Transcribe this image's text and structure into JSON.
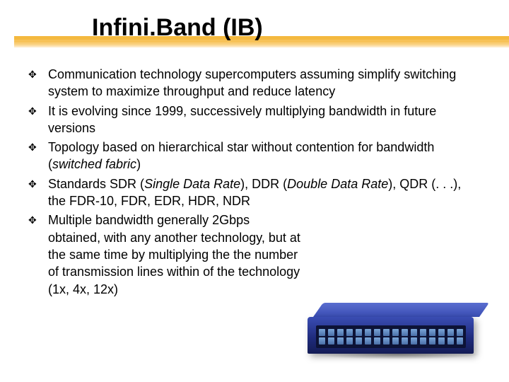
{
  "title": "Infini.Band (IB)",
  "title_fontsize": 34,
  "body_fontsize": 18,
  "colors": {
    "text": "#000000",
    "background": "#ffffff",
    "underline_shades": [
      "#f4b93f",
      "#f7c257",
      "#f9cd76",
      "#fbdb9c",
      "#fde8c1"
    ],
    "device_body": "#1e2a7a",
    "device_highlight": "#3a4db3",
    "device_port": "#7aa6d8"
  },
  "bullet_glyph": "✥",
  "bullets": [
    {
      "plain": "Communication technology supercomputers assuming simplify switching system to maximize throughput and reduce latency"
    },
    {
      "plain": "It is evolving since 1999, successively multiplying bandwidth in future versions"
    },
    {
      "pre": "Topology based on hierarchical star without contention for bandwidth (",
      "it1": "switched fabric",
      "post1": ")"
    },
    {
      "pre": "Standards SDR (",
      "it1": "Single Data Rate",
      "mid1": "), DDR (",
      "it2": "Double Data Rate",
      "post1": "), QDR (. . .), the FDR-10, FDR, EDR, HDR, NDR"
    },
    {
      "plain": "Multiple bandwidth generally 2Gbps obtained, with any another technology, but at the same time by multiplying the the number of transmission lines within of the technology (1x, 4x, 12x)"
    }
  ],
  "device": {
    "type": "network-switch",
    "port_rows": 2,
    "ports_per_row": 16
  }
}
